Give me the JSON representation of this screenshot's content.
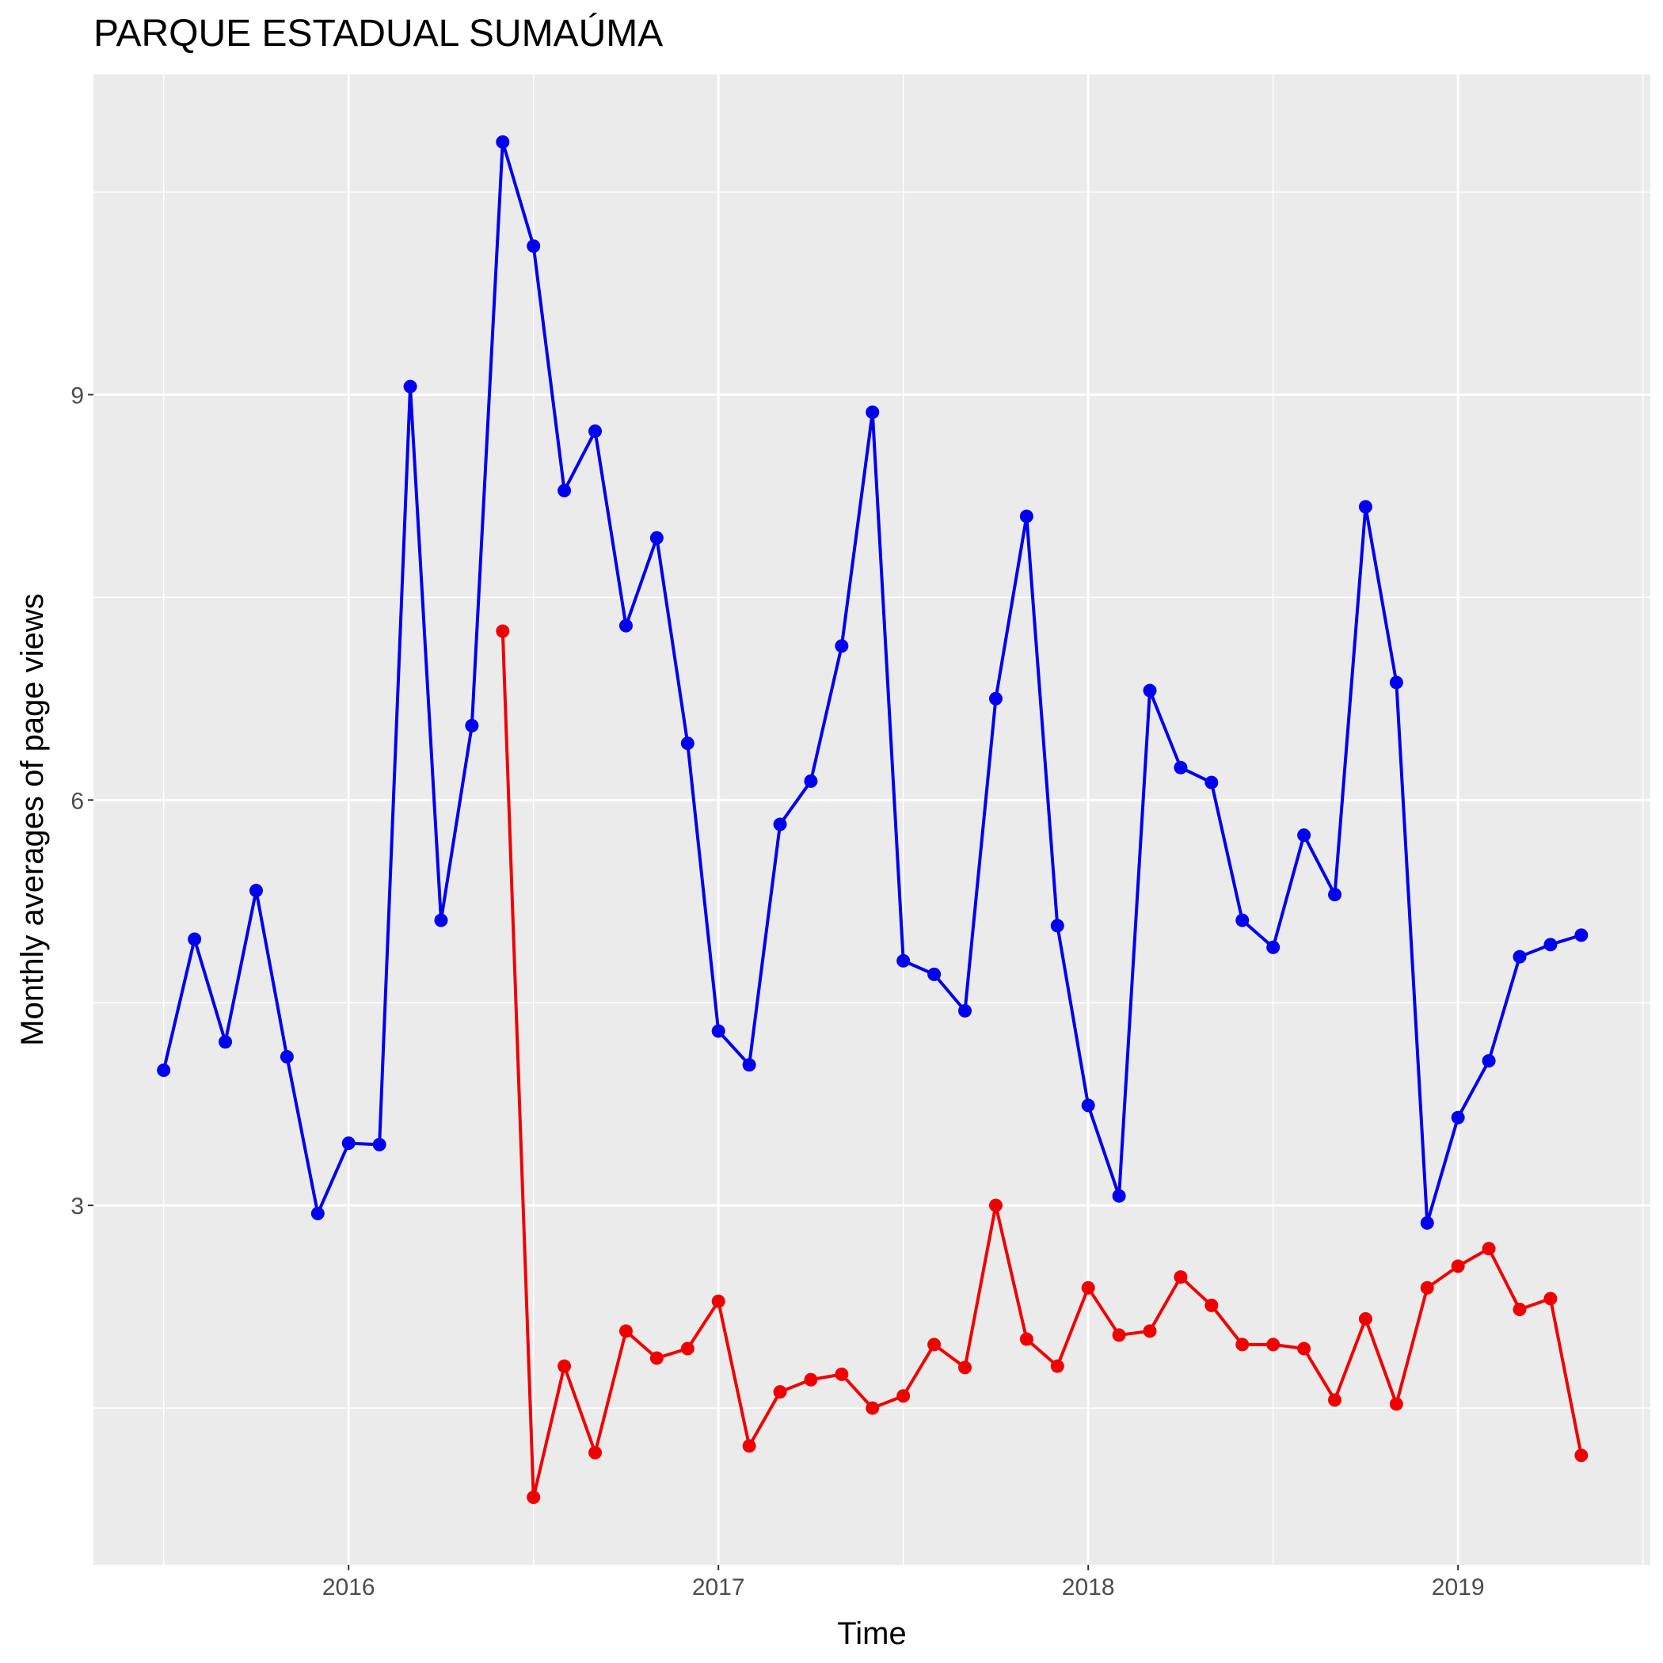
{
  "chart_data": {
    "type": "line",
    "title": "PARQUE ESTADUAL SUMAÚMA",
    "x_label": "Time",
    "y_label": "Monthly averages of page views",
    "x": [
      "2015-07",
      "2015-08",
      "2015-09",
      "2015-10",
      "2015-11",
      "2015-12",
      "2016-01",
      "2016-02",
      "2016-03",
      "2016-04",
      "2016-05",
      "2016-06",
      "2016-07",
      "2016-08",
      "2016-09",
      "2016-10",
      "2016-11",
      "2016-12",
      "2017-01",
      "2017-02",
      "2017-03",
      "2017-04",
      "2017-05",
      "2017-06",
      "2017-07",
      "2017-08",
      "2017-09",
      "2017-10",
      "2017-11",
      "2017-12",
      "2018-01",
      "2018-02",
      "2018-03",
      "2018-04",
      "2018-05",
      "2018-06",
      "2018-07",
      "2018-08",
      "2018-09",
      "2018-10",
      "2018-11",
      "2018-12",
      "2019-01",
      "2019-02",
      "2019-03",
      "2019-04",
      "2019-05"
    ],
    "series": [
      {
        "color": "#0000ee",
        "values": [
          4.0,
          4.97,
          4.21,
          5.33,
          4.1,
          2.94,
          3.46,
          3.45,
          9.06,
          5.11,
          6.55,
          10.87,
          10.1,
          8.29,
          8.73,
          7.29,
          7.94,
          6.42,
          4.29,
          4.04,
          5.82,
          6.14,
          7.14,
          8.87,
          4.81,
          4.71,
          4.44,
          6.75,
          8.1,
          5.07,
          3.74,
          3.07,
          6.81,
          6.24,
          6.13,
          5.11,
          4.91,
          5.74,
          5.3,
          8.17,
          6.87,
          2.87,
          3.65,
          4.07,
          4.84,
          4.93,
          5.0
        ]
      },
      {
        "color": "#ee0000",
        "values": [
          null,
          null,
          null,
          null,
          null,
          null,
          null,
          null,
          null,
          null,
          null,
          7.25,
          0.84,
          1.81,
          1.17,
          2.07,
          1.87,
          1.94,
          2.29,
          1.22,
          1.62,
          1.71,
          1.75,
          1.5,
          1.59,
          1.97,
          1.8,
          3.0,
          2.01,
          1.81,
          2.39,
          2.04,
          2.07,
          2.47,
          2.26,
          1.97,
          1.97,
          1.94,
          1.56,
          2.16,
          1.53,
          2.39,
          2.55,
          2.68,
          2.23,
          2.31,
          1.15
        ]
      }
    ],
    "xlim": [
      2015.31,
      2019.52
    ],
    "xticks": [
      2016,
      2017,
      2018,
      2019
    ],
    "ylim": [
      0.34,
      11.37
    ],
    "yticks": [
      3,
      6,
      9
    ],
    "grid": true
  }
}
